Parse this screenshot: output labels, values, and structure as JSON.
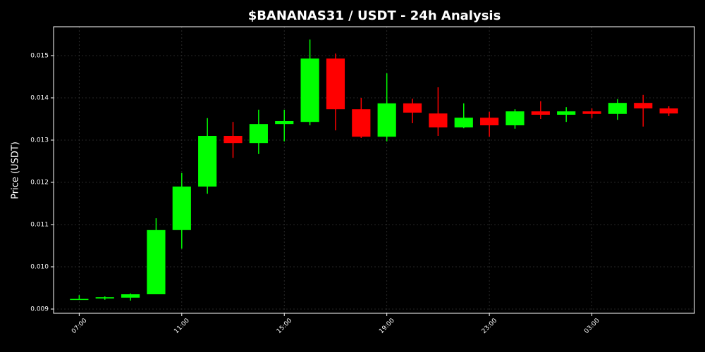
{
  "chart_data": {
    "type": "candlestick",
    "title": "$BANANAS31 / USDT - 24h Analysis",
    "y_label": "Price (USDT)",
    "categories": [
      "07:00",
      null,
      null,
      null,
      "11:00",
      null,
      null,
      null,
      "15:00",
      null,
      null,
      null,
      "19:00",
      null,
      null,
      null,
      "23:00",
      null,
      null,
      null,
      "03:00",
      null,
      null,
      null
    ],
    "open": [
      0.00923,
      0.00925,
      0.00927,
      0.00935,
      0.01087,
      0.0119,
      0.0131,
      0.01293,
      0.01338,
      0.01343,
      0.01493,
      0.01373,
      0.01308,
      0.01387,
      0.01363,
      0.0133,
      0.01353,
      0.01335,
      0.01368,
      0.0136,
      0.01368,
      0.01362,
      0.01388,
      0.01375
    ],
    "high": [
      0.00933,
      0.0093,
      0.00937,
      0.01115,
      0.01222,
      0.01352,
      0.01343,
      0.01372,
      0.01372,
      0.01538,
      0.01505,
      0.014,
      0.01458,
      0.01398,
      0.01425,
      0.01387,
      0.01367,
      0.01373,
      0.01392,
      0.01378,
      0.01375,
      0.01397,
      0.01407,
      0.0138
    ],
    "low": [
      0.00922,
      0.00922,
      0.0092,
      0.00935,
      0.01043,
      0.01173,
      0.01258,
      0.01267,
      0.01297,
      0.01335,
      0.01323,
      0.01305,
      0.01297,
      0.0134,
      0.0131,
      0.01328,
      0.01308,
      0.01327,
      0.0135,
      0.01343,
      0.01352,
      0.01348,
      0.01332,
      0.01357
    ],
    "close": [
      0.00924,
      0.00928,
      0.00935,
      0.01087,
      0.0119,
      0.0131,
      0.01293,
      0.01338,
      0.01345,
      0.01493,
      0.01373,
      0.01308,
      0.01387,
      0.01365,
      0.0133,
      0.01353,
      0.01335,
      0.01368,
      0.0136,
      0.01368,
      0.01362,
      0.01388,
      0.01375,
      0.01363
    ],
    "up_color": "#00ff00",
    "down_color": "#ff0000",
    "ylim": [
      0.0089,
      0.015683
    ],
    "yticks": [
      0.009,
      {
        "value": 0.01,
        "label": "0.010"
      },
      0.011,
      0.012,
      0.013,
      0.014,
      0.015
    ],
    "grid": true
  }
}
